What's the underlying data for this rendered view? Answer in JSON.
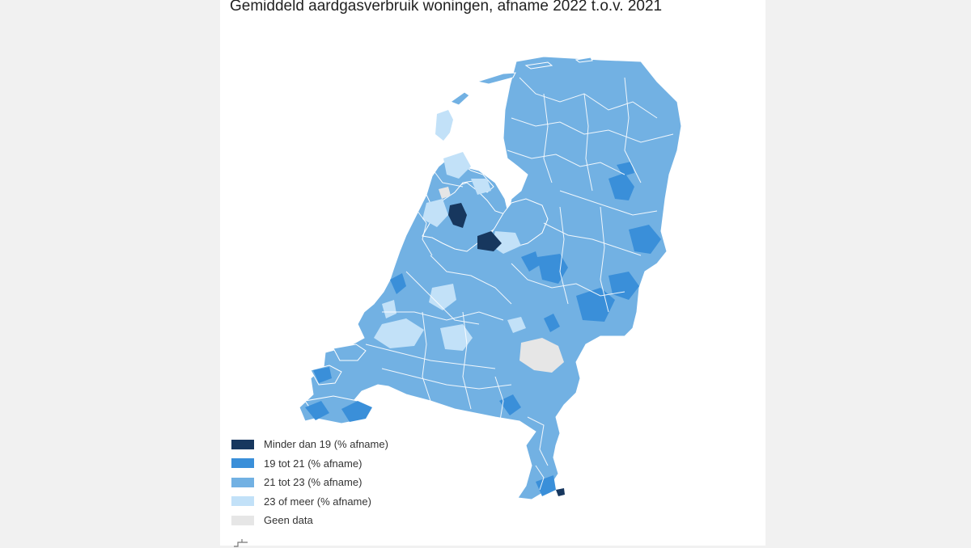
{
  "title": "Gemiddeld aardgasverbruik woningen, afname 2022 t.o.v. 2021",
  "legend": [
    {
      "label": "Minder dan 19 (% afname)",
      "color": "#17375e"
    },
    {
      "label": "19 tot 21 (% afname)",
      "color": "#3a8fd9"
    },
    {
      "label": "21 tot 23 (% afname)",
      "color": "#72b1e3"
    },
    {
      "label": "23 of meer (% afname)",
      "color": "#c2e1f8"
    },
    {
      "label": "Geen data",
      "color": "#e6e6e6"
    }
  ],
  "map": {
    "base_color": "#72b1e3",
    "border_color": "#ffffff",
    "water_color": "#ffffff"
  },
  "footer_icon": "chart-menu-icon"
}
